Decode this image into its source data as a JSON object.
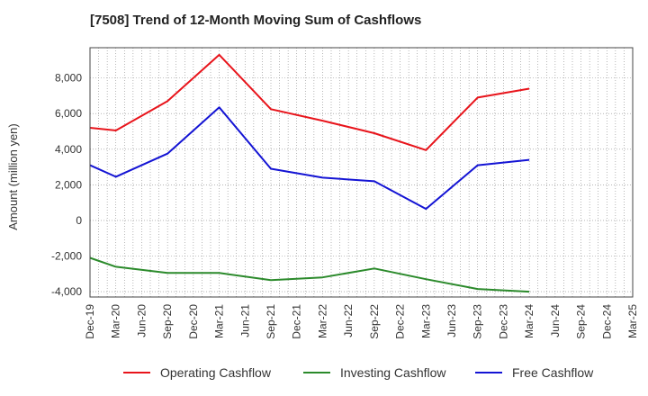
{
  "chart_data": {
    "type": "line",
    "title": "[7508]  Trend of 12-Month Moving Sum of Cashflows",
    "ylabel": "Amount (million yen)",
    "xlabel": "",
    "categories": [
      "Dec-19",
      "Mar-20",
      "Jun-20",
      "Sep-20",
      "Dec-20",
      "Mar-21",
      "Jun-21",
      "Sep-21",
      "Dec-21",
      "Mar-22",
      "Jun-22",
      "Sep-22",
      "Dec-22",
      "Mar-23",
      "Jun-23",
      "Sep-23",
      "Dec-23",
      "Mar-24",
      "Jun-24",
      "Sep-24",
      "Dec-24",
      "Mar-25"
    ],
    "ylim": [
      -4300,
      9700
    ],
    "yticks": [
      -4000,
      -2000,
      0,
      2000,
      4000,
      6000,
      8000
    ],
    "ytick_labels": [
      "-4,000",
      "-2,000",
      "0",
      "2,000",
      "4,000",
      "6,000",
      "8,000"
    ],
    "grid": true,
    "legend_position": "bottom",
    "series": [
      {
        "name": "Operating Cashflow",
        "color": "#e8141b",
        "values": [
          5200,
          5050,
          null,
          6700,
          null,
          9300,
          null,
          6250,
          null,
          5600,
          null,
          4900,
          null,
          3950,
          null,
          6900,
          null,
          7400,
          null,
          null,
          null,
          null
        ]
      },
      {
        "name": "Investing Cashflow",
        "color": "#2b8a2b",
        "values": [
          -2100,
          -2600,
          null,
          -2950,
          null,
          -2950,
          null,
          -3350,
          null,
          -3200,
          null,
          -2700,
          null,
          -3300,
          null,
          -3850,
          null,
          -4000,
          null,
          null,
          null,
          null
        ]
      },
      {
        "name": "Free Cashflow",
        "color": "#1414d4",
        "values": [
          3100,
          2450,
          null,
          3750,
          null,
          6350,
          null,
          2900,
          null,
          2400,
          null,
          2200,
          null,
          650,
          null,
          3100,
          null,
          3400,
          null,
          null,
          null,
          null
        ]
      }
    ]
  }
}
